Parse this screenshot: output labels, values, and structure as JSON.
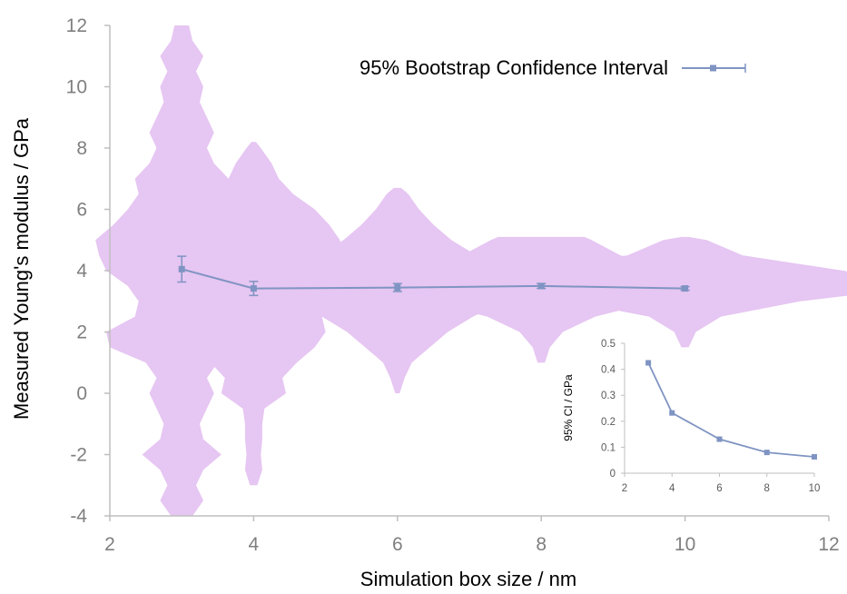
{
  "chart_data": [
    {
      "type": "violin",
      "title": "",
      "xlabel": "Simulation box size / nm",
      "ylabel": "Measured Young's modulus / GPa",
      "xlim": [
        2,
        12
      ],
      "ylim": [
        -4,
        12
      ],
      "xticks": [
        "2",
        "4",
        "6",
        "8",
        "10",
        "12"
      ],
      "yticks": [
        "-4",
        "-2",
        "0",
        "2",
        "4",
        "6",
        "8",
        "10",
        "12"
      ],
      "grid": false,
      "violin_color": "#e6c6f2",
      "line_color": "#7f94c2",
      "legend": {
        "placement": "top-right",
        "entries": [
          "95% Bootstrap Confidence Interval"
        ]
      },
      "violins": [
        {
          "x": 3,
          "profile": [
            [
              -4.0,
              0.15
            ],
            [
              -3.5,
              0.3
            ],
            [
              -3.0,
              0.2
            ],
            [
              -2.5,
              0.3
            ],
            [
              -2.0,
              0.55
            ],
            [
              -1.5,
              0.3
            ],
            [
              -1.0,
              0.25
            ],
            [
              -0.5,
              0.35
            ],
            [
              0.0,
              0.45
            ],
            [
              0.5,
              0.35
            ],
            [
              1.0,
              0.5
            ],
            [
              1.5,
              1.0
            ],
            [
              2.0,
              1.05
            ],
            [
              2.5,
              0.65
            ],
            [
              3.0,
              0.6
            ],
            [
              3.5,
              0.75
            ],
            [
              4.0,
              1.05
            ],
            [
              4.5,
              1.15
            ],
            [
              5.0,
              1.2
            ],
            [
              5.5,
              0.95
            ],
            [
              6.0,
              0.75
            ],
            [
              6.5,
              0.6
            ],
            [
              7.0,
              0.65
            ],
            [
              7.5,
              0.45
            ],
            [
              8.0,
              0.35
            ],
            [
              8.5,
              0.45
            ],
            [
              9.0,
              0.35
            ],
            [
              9.5,
              0.25
            ],
            [
              10.0,
              0.3
            ],
            [
              10.5,
              0.2
            ],
            [
              11.0,
              0.3
            ],
            [
              11.5,
              0.15
            ],
            [
              12.0,
              0.1
            ]
          ]
        },
        {
          "x": 4,
          "profile": [
            [
              -3.0,
              0.05
            ],
            [
              -2.5,
              0.12
            ],
            [
              -2.0,
              0.1
            ],
            [
              -1.5,
              0.12
            ],
            [
              -1.0,
              0.12
            ],
            [
              -0.5,
              0.15
            ],
            [
              0.0,
              0.45
            ],
            [
              0.5,
              0.4
            ],
            [
              1.0,
              0.6
            ],
            [
              1.5,
              0.85
            ],
            [
              2.0,
              1.0
            ],
            [
              2.5,
              0.95
            ],
            [
              3.0,
              1.1
            ],
            [
              3.5,
              1.2
            ],
            [
              4.0,
              1.25
            ],
            [
              4.5,
              1.25
            ],
            [
              5.0,
              1.2
            ],
            [
              5.5,
              1.05
            ],
            [
              6.0,
              0.85
            ],
            [
              6.5,
              0.55
            ],
            [
              7.0,
              0.35
            ],
            [
              7.5,
              0.25
            ],
            [
              8.0,
              0.1
            ],
            [
              8.2,
              0.03
            ]
          ]
        },
        {
          "x": 6,
          "profile": [
            [
              0.0,
              0.03
            ],
            [
              0.5,
              0.1
            ],
            [
              1.0,
              0.2
            ],
            [
              1.5,
              0.45
            ],
            [
              2.0,
              0.7
            ],
            [
              2.5,
              1.05
            ],
            [
              3.0,
              1.5
            ],
            [
              3.5,
              2.0
            ],
            [
              4.0,
              1.6
            ],
            [
              4.5,
              1.1
            ],
            [
              5.0,
              0.75
            ],
            [
              5.5,
              0.5
            ],
            [
              6.0,
              0.3
            ],
            [
              6.5,
              0.15
            ],
            [
              6.7,
              0.05
            ]
          ]
        },
        {
          "x": 8,
          "profile": [
            [
              1.0,
              0.05
            ],
            [
              1.5,
              0.12
            ],
            [
              2.0,
              0.3
            ],
            [
              2.5,
              0.75
            ],
            [
              3.0,
              1.6
            ],
            [
              3.5,
              3.0
            ],
            [
              4.0,
              2.0
            ],
            [
              4.5,
              1.1
            ],
            [
              5.0,
              0.7
            ],
            [
              5.1,
              0.6
            ]
          ]
        },
        {
          "x": 10,
          "profile": [
            [
              1.5,
              0.05
            ],
            [
              2.0,
              0.15
            ],
            [
              2.5,
              0.5
            ],
            [
              3.0,
              1.6
            ],
            [
              3.5,
              3.4
            ],
            [
              4.0,
              2.2
            ],
            [
              4.5,
              0.8
            ],
            [
              5.0,
              0.3
            ],
            [
              5.1,
              0.05
            ]
          ]
        }
      ],
      "series": [
        {
          "name": "95% Bootstrap Confidence Interval",
          "x": [
            3,
            4,
            6,
            8,
            10
          ],
          "y": [
            4.05,
            3.42,
            3.45,
            3.5,
            3.42
          ],
          "y_error": [
            0.42,
            0.23,
            0.13,
            0.08,
            0.06
          ]
        }
      ]
    },
    {
      "type": "line",
      "title": "",
      "xlabel": "",
      "ylabel": "95% CI / GPa",
      "xlim": [
        2,
        10
      ],
      "ylim": [
        0,
        0.5
      ],
      "xticks": [
        "2",
        "4",
        "6",
        "8",
        "10"
      ],
      "yticks": [
        "0",
        "0.1",
        "0.2",
        "0.3",
        "0.4",
        "0.5"
      ],
      "grid": false,
      "placement": "bottom-right inset",
      "series": [
        {
          "x": [
            3,
            4,
            6,
            8,
            10
          ],
          "y": [
            0.425,
            0.232,
            0.131,
            0.08,
            0.063
          ]
        }
      ]
    }
  ]
}
